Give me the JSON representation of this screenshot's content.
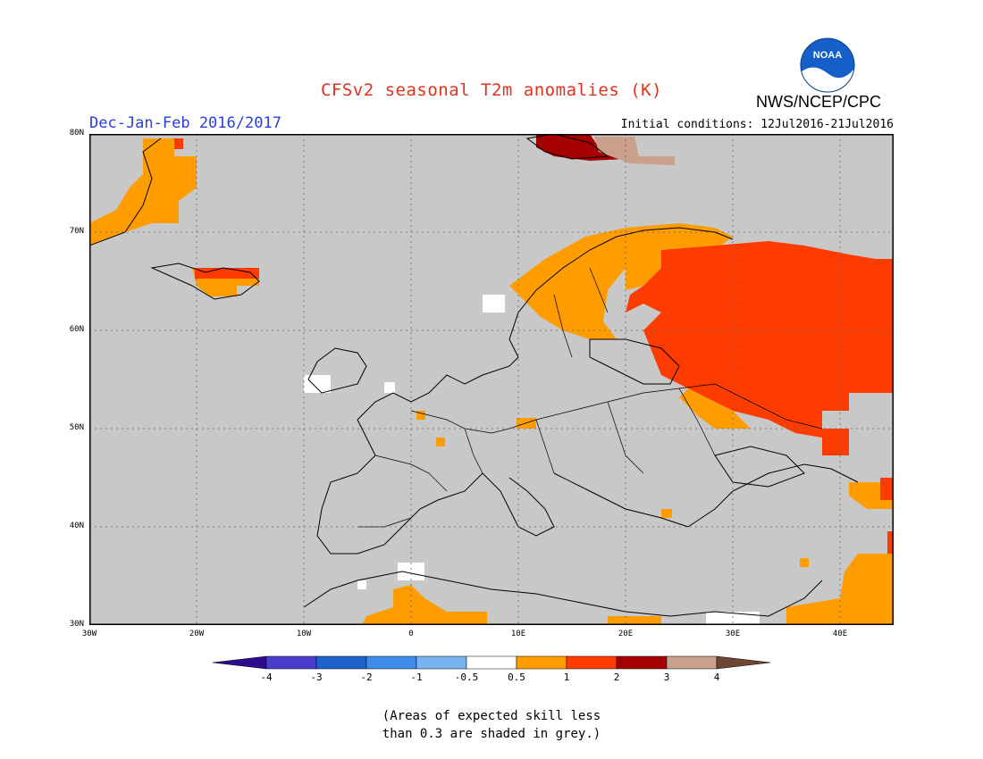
{
  "header": {
    "title": "CFSv2 seasonal T2m anomalies (K)",
    "org": "NWS/NCEP/CPC",
    "logo_text": "NOAA",
    "season": "Dec-Jan-Feb 2016/2017",
    "initial_conditions": "Initial conditions: 12Jul2016-21Jul2016"
  },
  "map": {
    "region": "Europe",
    "lon_range": [
      -30,
      45
    ],
    "lat_range": [
      30,
      80
    ],
    "y_ticks": [
      "80N",
      "70N",
      "60N",
      "50N",
      "40N",
      "30N"
    ],
    "x_ticks": [
      "30W",
      "20W",
      "10W",
      "0",
      "10E",
      "20E",
      "30E",
      "40E"
    ],
    "background_color": "#c8c8c8"
  },
  "colorbar": {
    "labels": [
      "-4",
      "-3",
      "-2",
      "-1",
      "-0.5",
      "0.5",
      "1",
      "2",
      "3",
      "4"
    ],
    "colors": [
      "#2c0c8c",
      "#4a3ccc",
      "#1e62cc",
      "#3c8ce8",
      "#78b4f0",
      "#ffffff",
      "#ff9d00",
      "#ff3c00",
      "#a50000",
      "#c8a08c",
      "#6e4632"
    ]
  },
  "footnote": {
    "line1": "(Areas of expected skill less",
    "line2": "than 0.3 are shaded in grey.)"
  }
}
